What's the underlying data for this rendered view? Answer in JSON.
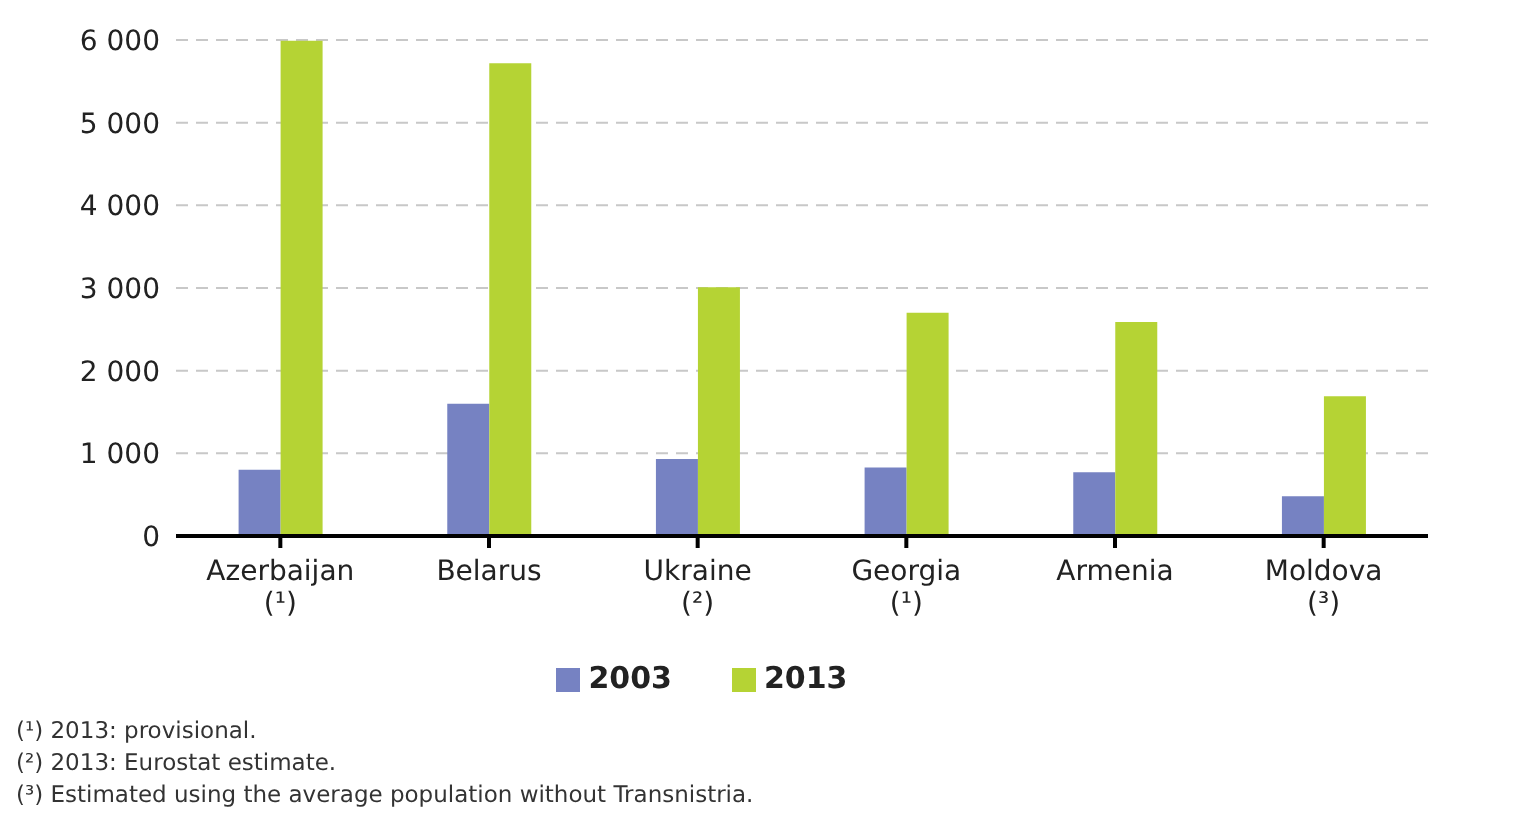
{
  "chart_data": {
    "type": "bar",
    "categories": [
      "Azerbaijan\n(¹)",
      "Belarus",
      "Ukraine\n(²)",
      "Georgia\n(¹)",
      "Armenia",
      "Moldova\n(³)"
    ],
    "series": [
      {
        "name": "2003",
        "color": "#7682c2",
        "values": [
          800,
          1600,
          930,
          830,
          770,
          480
        ]
      },
      {
        "name": "2013",
        "color": "#b5d334",
        "values": [
          5990,
          5720,
          3010,
          2700,
          2590,
          1690
        ]
      }
    ],
    "ylim": [
      0,
      6000
    ],
    "yticks": [
      0,
      {
        "value": 1000,
        "label": "1 000"
      },
      {
        "value": 2000,
        "label": "2 000"
      },
      {
        "value": 3000,
        "label": "3 000"
      },
      {
        "value": 4000,
        "label": "4 000"
      },
      {
        "value": 5000,
        "label": "5 000"
      },
      {
        "value": 6000,
        "label": "6 000"
      }
    ],
    "grid": "y",
    "legend": "bottom",
    "annotations": [
      "(¹) 2013: provisional.",
      "(²) 2013: Eurostat estimate.",
      "(³) Estimated using the average population without Transnistria."
    ]
  }
}
